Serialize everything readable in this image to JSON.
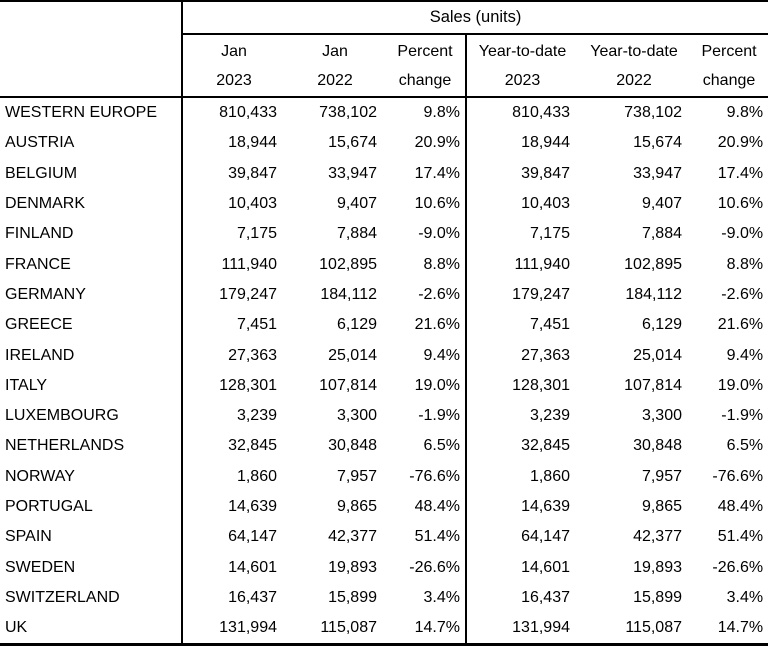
{
  "colors": {
    "text": "#000000",
    "border": "#000000",
    "background": "#ffffff"
  },
  "table": {
    "title": "Sales (units)",
    "columns": [
      {
        "line1": "Jan",
        "line2": "2023"
      },
      {
        "line1": "Jan",
        "line2": "2022"
      },
      {
        "line1": "Percent",
        "line2": "change"
      },
      {
        "line1": "Year-to-date",
        "line2": "2023"
      },
      {
        "line1": "Year-to-date",
        "line2": "2022"
      },
      {
        "line1": "Percent",
        "line2": "change"
      }
    ],
    "rows": [
      {
        "region": "WESTERN EUROPE",
        "jan_2023": "810,433",
        "jan_2022": "738,102",
        "pct_change": "9.8%",
        "ytd_2023": "810,433",
        "ytd_2022": "738,102",
        "ytd_pct_change": "9.8%"
      },
      {
        "region": "AUSTRIA",
        "jan_2023": "18,944",
        "jan_2022": "15,674",
        "pct_change": "20.9%",
        "ytd_2023": "18,944",
        "ytd_2022": "15,674",
        "ytd_pct_change": "20.9%"
      },
      {
        "region": "BELGIUM",
        "jan_2023": "39,847",
        "jan_2022": "33,947",
        "pct_change": "17.4%",
        "ytd_2023": "39,847",
        "ytd_2022": "33,947",
        "ytd_pct_change": "17.4%"
      },
      {
        "region": "DENMARK",
        "jan_2023": "10,403",
        "jan_2022": "9,407",
        "pct_change": "10.6%",
        "ytd_2023": "10,403",
        "ytd_2022": "9,407",
        "ytd_pct_change": "10.6%"
      },
      {
        "region": "FINLAND",
        "jan_2023": "7,175",
        "jan_2022": "7,884",
        "pct_change": "-9.0%",
        "ytd_2023": "7,175",
        "ytd_2022": "7,884",
        "ytd_pct_change": "-9.0%"
      },
      {
        "region": "FRANCE",
        "jan_2023": "111,940",
        "jan_2022": "102,895",
        "pct_change": "8.8%",
        "ytd_2023": "111,940",
        "ytd_2022": "102,895",
        "ytd_pct_change": "8.8%"
      },
      {
        "region": "GERMANY",
        "jan_2023": "179,247",
        "jan_2022": "184,112",
        "pct_change": "-2.6%",
        "ytd_2023": "179,247",
        "ytd_2022": "184,112",
        "ytd_pct_change": "-2.6%"
      },
      {
        "region": "GREECE",
        "jan_2023": "7,451",
        "jan_2022": "6,129",
        "pct_change": "21.6%",
        "ytd_2023": "7,451",
        "ytd_2022": "6,129",
        "ytd_pct_change": "21.6%"
      },
      {
        "region": "IRELAND",
        "jan_2023": "27,363",
        "jan_2022": "25,014",
        "pct_change": "9.4%",
        "ytd_2023": "27,363",
        "ytd_2022": "25,014",
        "ytd_pct_change": "9.4%"
      },
      {
        "region": "ITALY",
        "jan_2023": "128,301",
        "jan_2022": "107,814",
        "pct_change": "19.0%",
        "ytd_2023": "128,301",
        "ytd_2022": "107,814",
        "ytd_pct_change": "19.0%"
      },
      {
        "region": "LUXEMBOURG",
        "jan_2023": "3,239",
        "jan_2022": "3,300",
        "pct_change": "-1.9%",
        "ytd_2023": "3,239",
        "ytd_2022": "3,300",
        "ytd_pct_change": "-1.9%"
      },
      {
        "region": "NETHERLANDS",
        "jan_2023": "32,845",
        "jan_2022": "30,848",
        "pct_change": "6.5%",
        "ytd_2023": "32,845",
        "ytd_2022": "30,848",
        "ytd_pct_change": "6.5%"
      },
      {
        "region": "NORWAY",
        "jan_2023": "1,860",
        "jan_2022": "7,957",
        "pct_change": "-76.6%",
        "ytd_2023": "1,860",
        "ytd_2022": "7,957",
        "ytd_pct_change": "-76.6%"
      },
      {
        "region": "PORTUGAL",
        "jan_2023": "14,639",
        "jan_2022": "9,865",
        "pct_change": "48.4%",
        "ytd_2023": "14,639",
        "ytd_2022": "9,865",
        "ytd_pct_change": "48.4%"
      },
      {
        "region": "SPAIN",
        "jan_2023": "64,147",
        "jan_2022": "42,377",
        "pct_change": "51.4%",
        "ytd_2023": "64,147",
        "ytd_2022": "42,377",
        "ytd_pct_change": "51.4%"
      },
      {
        "region": "SWEDEN",
        "jan_2023": "14,601",
        "jan_2022": "19,893",
        "pct_change": "-26.6%",
        "ytd_2023": "14,601",
        "ytd_2022": "19,893",
        "ytd_pct_change": "-26.6%"
      },
      {
        "region": "SWITZERLAND",
        "jan_2023": "16,437",
        "jan_2022": "15,899",
        "pct_change": "3.4%",
        "ytd_2023": "16,437",
        "ytd_2022": "15,899",
        "ytd_pct_change": "3.4%"
      },
      {
        "region": "UK",
        "jan_2023": "131,994",
        "jan_2022": "115,087",
        "pct_change": "14.7%",
        "ytd_2023": "131,994",
        "ytd_2022": "115,087",
        "ytd_pct_change": "14.7%"
      }
    ]
  },
  "chart_data": {
    "type": "table",
    "title": "Sales (units)",
    "columns": [
      "Jan 2023",
      "Jan 2022",
      "Percent change",
      "Year-to-date 2023",
      "Year-to-date 2022",
      "Percent change"
    ],
    "rows": [
      {
        "region": "WESTERN EUROPE",
        "jan_2023": 810433,
        "jan_2022": 738102,
        "percent_change": 9.8,
        "ytd_2023": 810433,
        "ytd_2022": 738102,
        "ytd_percent_change": 9.8
      },
      {
        "region": "AUSTRIA",
        "jan_2023": 18944,
        "jan_2022": 15674,
        "percent_change": 20.9,
        "ytd_2023": 18944,
        "ytd_2022": 15674,
        "ytd_percent_change": 20.9
      },
      {
        "region": "BELGIUM",
        "jan_2023": 39847,
        "jan_2022": 33947,
        "percent_change": 17.4,
        "ytd_2023": 39847,
        "ytd_2022": 33947,
        "ytd_percent_change": 17.4
      },
      {
        "region": "DENMARK",
        "jan_2023": 10403,
        "jan_2022": 9407,
        "percent_change": 10.6,
        "ytd_2023": 10403,
        "ytd_2022": 9407,
        "ytd_percent_change": 10.6
      },
      {
        "region": "FINLAND",
        "jan_2023": 7175,
        "jan_2022": 7884,
        "percent_change": -9.0,
        "ytd_2023": 7175,
        "ytd_2022": 7884,
        "ytd_percent_change": -9.0
      },
      {
        "region": "FRANCE",
        "jan_2023": 111940,
        "jan_2022": 102895,
        "percent_change": 8.8,
        "ytd_2023": 111940,
        "ytd_2022": 102895,
        "ytd_percent_change": 8.8
      },
      {
        "region": "GERMANY",
        "jan_2023": 179247,
        "jan_2022": 184112,
        "percent_change": -2.6,
        "ytd_2023": 179247,
        "ytd_2022": 184112,
        "ytd_percent_change": -2.6
      },
      {
        "region": "GREECE",
        "jan_2023": 7451,
        "jan_2022": 6129,
        "percent_change": 21.6,
        "ytd_2023": 7451,
        "ytd_2022": 6129,
        "ytd_percent_change": 21.6
      },
      {
        "region": "IRELAND",
        "jan_2023": 27363,
        "jan_2022": 25014,
        "percent_change": 9.4,
        "ytd_2023": 27363,
        "ytd_2022": 25014,
        "ytd_percent_change": 9.4
      },
      {
        "region": "ITALY",
        "jan_2023": 128301,
        "jan_2022": 107814,
        "percent_change": 19.0,
        "ytd_2023": 128301,
        "ytd_2022": 107814,
        "ytd_percent_change": 19.0
      },
      {
        "region": "LUXEMBOURG",
        "jan_2023": 3239,
        "jan_2022": 3300,
        "percent_change": -1.9,
        "ytd_2023": 3239,
        "ytd_2022": 3300,
        "ytd_percent_change": -1.9
      },
      {
        "region": "NETHERLANDS",
        "jan_2023": 32845,
        "jan_2022": 30848,
        "percent_change": 6.5,
        "ytd_2023": 32845,
        "ytd_2022": 30848,
        "ytd_percent_change": 6.5
      },
      {
        "region": "NORWAY",
        "jan_2023": 1860,
        "jan_2022": 7957,
        "percent_change": -76.6,
        "ytd_2023": 1860,
        "ytd_2022": 7957,
        "ytd_percent_change": -76.6
      },
      {
        "region": "PORTUGAL",
        "jan_2023": 14639,
        "jan_2022": 9865,
        "percent_change": 48.4,
        "ytd_2023": 14639,
        "ytd_2022": 9865,
        "ytd_percent_change": 48.4
      },
      {
        "region": "SPAIN",
        "jan_2023": 64147,
        "jan_2022": 42377,
        "percent_change": 51.4,
        "ytd_2023": 64147,
        "ytd_2022": 42377,
        "ytd_percent_change": 51.4
      },
      {
        "region": "SWEDEN",
        "jan_2023": 14601,
        "jan_2022": 19893,
        "percent_change": -26.6,
        "ytd_2023": 14601,
        "ytd_2022": 19893,
        "ytd_percent_change": -26.6
      },
      {
        "region": "SWITZERLAND",
        "jan_2023": 16437,
        "jan_2022": 15899,
        "percent_change": 3.4,
        "ytd_2023": 16437,
        "ytd_2022": 15899,
        "ytd_percent_change": 3.4
      },
      {
        "region": "UK",
        "jan_2023": 131994,
        "jan_2022": 115087,
        "percent_change": 14.7,
        "ytd_2023": 131994,
        "ytd_2022": 115087,
        "ytd_percent_change": 14.7
      }
    ]
  }
}
